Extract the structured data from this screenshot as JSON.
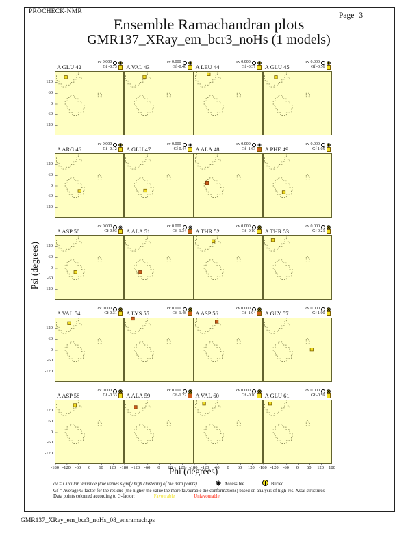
{
  "header": {
    "app": "PROCHECK-NMR",
    "page_label": "Page",
    "page_number": "3",
    "title": "Ensemble Ramachandran plots",
    "subtitle": "GMR137_XRay_em_bcr3_noHs (1 models)"
  },
  "axes": {
    "xlabel": "Phi (degrees)",
    "ylabel": "Psi (degrees)",
    "x_ticks": [
      -180,
      -120,
      -60,
      0,
      60,
      120,
      180
    ],
    "y_ticks": [
      120,
      60,
      0,
      -60,
      -120
    ],
    "xlim": [
      -180,
      180
    ],
    "ylim": [
      -180,
      180
    ]
  },
  "legend": {
    "cv_line": "cv = Circular Variance (low values signify high clustering of the data points).",
    "accessible_label": "Accessible",
    "buried_label": "Buried",
    "gf_line": "Gf = Average G-factor for the residue (the higher the value the more favourable the conformations) based on analysis of high-res. Xstal structures",
    "colour_line": "Data points coloured according to G-factor:",
    "favourable_label": "Favourable",
    "unfavourable_label": "Unfavourable",
    "marker_key": {
      "accessible": "black-star",
      "buried": "yellow-circle"
    }
  },
  "colors": {
    "plot_bg": "#ffffc2",
    "contour": "#8e8e5c",
    "plot_border": "#63632f",
    "favourable": "#f0dd22",
    "unfavourable": "#cf5f1d",
    "favourable_text": "#f0e020",
    "unfavourable_text": "#ff1a00"
  },
  "footer": {
    "filename": "GMR137_XRay_em_bcr3_noHs_08_ensramach.ps"
  },
  "chart_data": {
    "type": "scatter",
    "title": "Ensemble Ramachandran plots",
    "subtitle": "GMR137_XRay_em_bcr3_noHs (1 models)",
    "grid_layout": [
      5,
      4
    ],
    "xlabel": "Phi (degrees)",
    "ylabel": "Psi (degrees)",
    "xlim": [
      -180,
      180
    ],
    "ylim": [
      -180,
      180
    ],
    "models_per_plot": 1,
    "residues": [
      {
        "label": "A GLU 42",
        "cv": "0.000",
        "gf": "-0.73",
        "access": "buried",
        "fav": "favourable",
        "phi": -126,
        "psi": 150
      },
      {
        "label": "A VAL 43",
        "cv": "0.000",
        "gf": "-0.48",
        "access": "buried",
        "fav": "favourable",
        "phi": -77,
        "psi": 152
      },
      {
        "label": "A LEU 44",
        "cv": "0.000",
        "gf": "-0.37",
        "access": "buried",
        "fav": "favourable",
        "phi": -106,
        "psi": 167
      },
      {
        "label": "A GLU 45",
        "cv": "0.000",
        "gf": "-0.56",
        "access": "buried",
        "fav": "favourable",
        "phi": -116,
        "psi": 150
      },
      {
        "label": "A ARG 46",
        "cv": "0.000",
        "gf": "-0.12",
        "access": "buried",
        "fav": "favourable",
        "phi": -55,
        "psi": -27
      },
      {
        "label": "A GLU 47",
        "cv": "0.000",
        "gf": "0.44",
        "access": "accessible",
        "fav": "favourable",
        "phi": -73,
        "psi": -25
      },
      {
        "label": "A ALA 48",
        "cv": "0.000",
        "gf": "-1.63",
        "access": "accessible",
        "fav": "unfavourable",
        "phi": -114,
        "psi": 17
      },
      {
        "label": "A PHE 49",
        "cv": "0.000",
        "gf": "1.05",
        "access": "buried",
        "fav": "favourable",
        "phi": -75,
        "psi": -34
      },
      {
        "label": "A ASP 50",
        "cv": "0.000",
        "gf": "0.93",
        "access": "accessible",
        "fav": "favourable",
        "phi": -76,
        "psi": -22
      },
      {
        "label": "A ALA 51",
        "cv": "0.000",
        "gf": "-1.34",
        "access": "accessible",
        "fav": "unfavourable",
        "phi": -99,
        "psi": -22
      },
      {
        "label": "A THR 52",
        "cv": "0.000",
        "gf": "-0.10",
        "access": "buried",
        "fav": "favourable",
        "phi": -82,
        "psi": 152
      },
      {
        "label": "A THR 53",
        "cv": "0.000",
        "gf": "0.21",
        "access": "buried",
        "fav": "favourable",
        "phi": -132,
        "psi": 158
      },
      {
        "label": "A VAL 54",
        "cv": "0.000",
        "gf": "0.31",
        "access": "buried",
        "fav": "favourable",
        "phi": -109,
        "psi": 152
      },
      {
        "label": "A LYS 55",
        "cv": "0.000",
        "gf": "-1.48",
        "access": "buried",
        "fav": "unfavourable",
        "phi": -137,
        "psi": 178
      },
      {
        "label": "A ASP 56",
        "cv": "0.000",
        "gf": "-1.04",
        "access": "buried",
        "fav": "unfavourable",
        "phi": -64,
        "psi": 161
      },
      {
        "label": "A GLY 57",
        "cv": "0.000",
        "gf": "1.00",
        "access": "buried",
        "fav": "favourable",
        "phi": 70,
        "psi": 5
      },
      {
        "label": "A ASP 58",
        "cv": "0.000",
        "gf": "-0.33",
        "access": "buried",
        "fav": "favourable",
        "phi": -79,
        "psi": 153
      },
      {
        "label": "A ALA 59",
        "cv": "0.000",
        "gf": "-1.22",
        "access": "buried",
        "fav": "unfavourable",
        "phi": -123,
        "psi": 142
      },
      {
        "label": "A VAL 60",
        "cv": "0.000",
        "gf": "-0.10",
        "access": "buried",
        "fav": "favourable",
        "phi": -130,
        "psi": 162
      },
      {
        "label": "A GLU 61",
        "cv": "0.000",
        "gf": "-0.59",
        "access": "buried",
        "fav": "favourable",
        "phi": -146,
        "psi": 162
      }
    ]
  }
}
